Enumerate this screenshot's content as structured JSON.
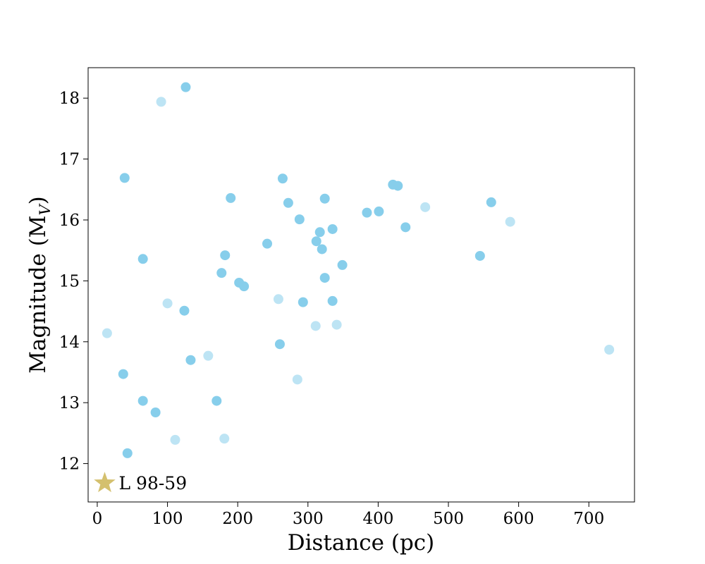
{
  "chart_data": {
    "type": "scatter",
    "xlabel": "Distance (pc)",
    "ylabel_main": "Magnitude (M",
    "ylabel_sub": "V",
    "ylabel_close": ")",
    "xlim": [
      -13,
      765
    ],
    "ylim": [
      11.37,
      18.5
    ],
    "xticks": [
      0,
      100,
      200,
      300,
      400,
      500,
      600,
      700
    ],
    "yticks": [
      12,
      13,
      14,
      15,
      16,
      17,
      18
    ],
    "grid": false,
    "colors": {
      "point": "#87CEEB",
      "star": "#D4C06E"
    },
    "series": [
      {
        "alpha": 1.0,
        "points": [
          [
            126,
            18.18
          ],
          [
            39,
            16.69
          ],
          [
            264,
            16.68
          ],
          [
            421,
            16.58
          ],
          [
            428,
            16.56
          ],
          [
            190,
            16.36
          ],
          [
            324,
            16.35
          ],
          [
            272,
            16.28
          ],
          [
            561,
            16.29
          ],
          [
            384,
            16.12
          ],
          [
            401,
            16.14
          ],
          [
            288,
            16.01
          ],
          [
            335,
            15.85
          ],
          [
            439,
            15.88
          ],
          [
            317,
            15.8
          ],
          [
            312,
            15.65
          ],
          [
            242,
            15.61
          ],
          [
            320,
            15.52
          ],
          [
            182,
            15.42
          ],
          [
            65,
            15.36
          ],
          [
            545,
            15.41
          ],
          [
            349,
            15.26
          ],
          [
            177,
            15.13
          ],
          [
            324,
            15.05
          ],
          [
            202,
            14.97
          ],
          [
            209,
            14.91
          ],
          [
            293,
            14.65
          ],
          [
            335,
            14.67
          ],
          [
            124,
            14.51
          ],
          [
            260,
            13.96
          ],
          [
            133,
            13.7
          ],
          [
            37,
            13.47
          ],
          [
            65,
            13.03
          ],
          [
            170,
            13.03
          ],
          [
            83,
            12.84
          ],
          [
            43,
            12.17
          ]
        ]
      },
      {
        "alpha": 0.55,
        "points": [
          [
            91,
            17.94
          ],
          [
            467,
            16.21
          ],
          [
            588,
            15.97
          ],
          [
            100,
            14.63
          ],
          [
            258,
            14.7
          ],
          [
            14,
            14.14
          ],
          [
            311,
            14.26
          ],
          [
            341,
            14.28
          ],
          [
            158,
            13.77
          ],
          [
            729,
            13.87
          ],
          [
            285,
            13.38
          ],
          [
            111,
            12.39
          ],
          [
            181,
            12.41
          ]
        ]
      }
    ],
    "highlight": {
      "name": "L 98-59",
      "x": 10.6,
      "y": 11.68
    }
  }
}
